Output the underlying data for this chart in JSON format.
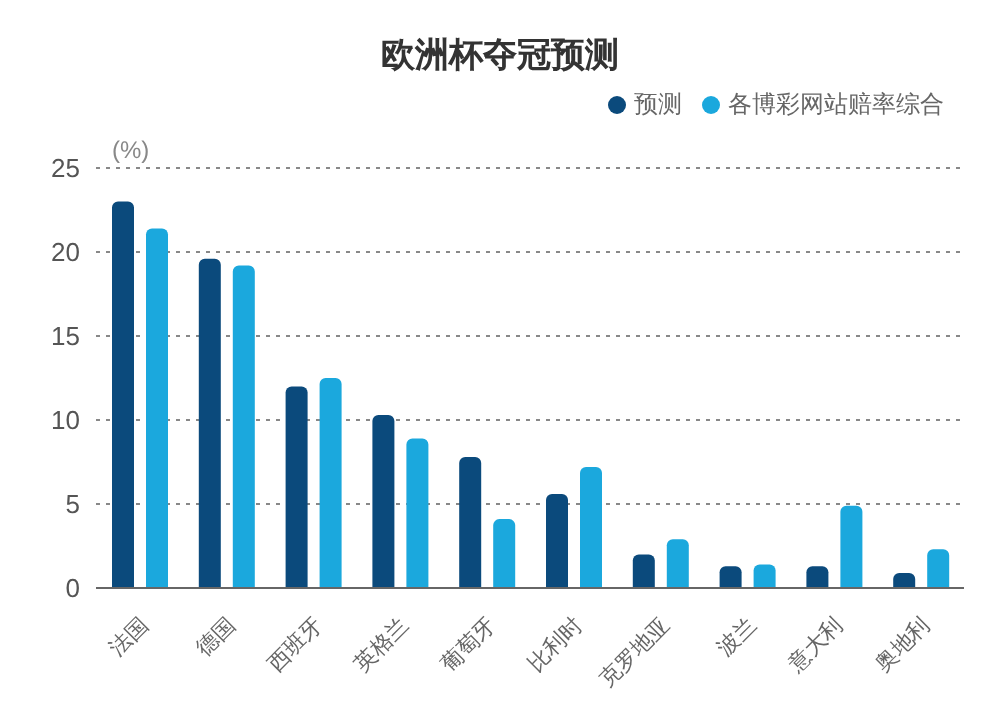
{
  "chart_data": {
    "type": "bar",
    "title": "欧洲杯夺冠预测",
    "ylabel": "(%)",
    "categories": [
      "法国",
      "德国",
      "西班牙",
      "英格兰",
      "葡萄牙",
      "比利时",
      "克罗地亚",
      "波兰",
      "意大利",
      "奥地利"
    ],
    "series": [
      {
        "name": "预测",
        "color": "#0b4a7c",
        "values": [
          23.0,
          19.6,
          12.0,
          10.3,
          7.8,
          5.6,
          2.0,
          1.3,
          1.3,
          0.9
        ]
      },
      {
        "name": "各博彩网站赔率综合",
        "color": "#1ba8dd",
        "values": [
          21.4,
          19.2,
          12.5,
          8.9,
          4.1,
          7.2,
          2.9,
          1.4,
          4.9,
          2.3
        ]
      }
    ],
    "ylim": [
      0,
      25
    ],
    "yticks": [
      0,
      5,
      10,
      15,
      20,
      25
    ],
    "grid": "y",
    "legend": "top right"
  }
}
